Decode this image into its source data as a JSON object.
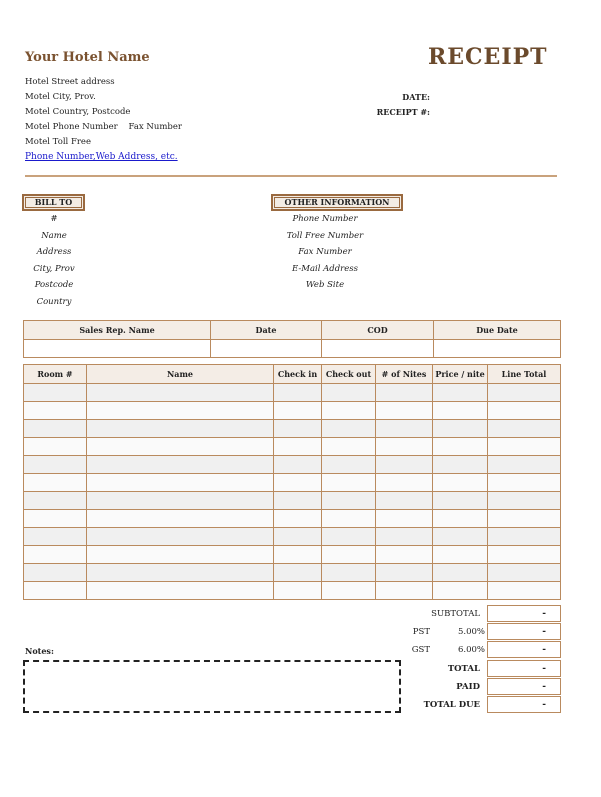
{
  "header": {
    "hotel_name": "Your Hotel Name",
    "title": "RECEIPT",
    "address_lines": [
      "Hotel  Street address",
      "Motel City, Prov.",
      "Motel Country, Postcode",
      "Motel Phone Number    Fax Number",
      "Motel Toll Free"
    ],
    "link": "Phone Number,Web Address, etc.",
    "date_label": "DATE:",
    "receipt_label": "RECEIPT #:"
  },
  "bill_to": {
    "title": "BILL TO",
    "fields": [
      "#",
      "Name",
      "Address",
      "City, Prov",
      "Postcode",
      "Country"
    ]
  },
  "other_info": {
    "title": "OTHER INFORMATION",
    "fields": [
      "Phone Number",
      "Toll Free Number",
      "Fax Number",
      "E-Mail Address",
      "Web Site"
    ]
  },
  "sales_table": {
    "headers": [
      "Sales Rep. Name",
      "Date",
      "COD",
      "Due Date"
    ]
  },
  "items_table": {
    "headers": [
      "Room #",
      "Name",
      "Check in",
      "Check out",
      "# of Nites",
      "Price / nite",
      "Line Total"
    ],
    "row_count": 12
  },
  "totals": {
    "subtotal_label": "SUBTOTAL",
    "pst_label": "PST",
    "pst_rate": "5.00%",
    "gst_label": "GST",
    "gst_rate": "6.00%",
    "total_label": "TOTAL",
    "paid_label": "PAID",
    "total_due_label": "TOTAL DUE",
    "values": [
      "-",
      "-",
      "-",
      "-",
      "-",
      "-"
    ]
  },
  "notes": {
    "label": "Notes:"
  },
  "colors": {
    "brand": "#7a5230",
    "border": "#b98a5e",
    "link": "#1a1acc"
  }
}
